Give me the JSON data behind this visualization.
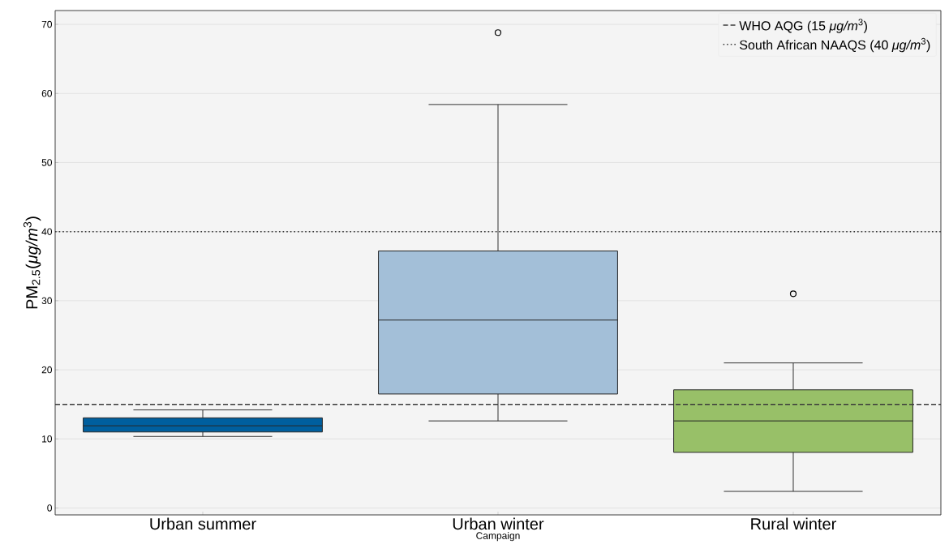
{
  "chart_data": {
    "type": "box",
    "xlabel": "Campaign",
    "ylabel": "PM$_{2.5}$(*μg/m*$^{3}$)",
    "categories": [
      "Urban summer",
      "Urban winter",
      "Rural winter"
    ],
    "colors": [
      "#005f9e",
      "#a3bfd8",
      "#98c068"
    ],
    "boxes": [
      {
        "low": 10.35,
        "q1": 11.0,
        "median": 11.9,
        "q3": 13.05,
        "high": 14.2
      },
      {
        "low": 12.6,
        "q1": 16.5,
        "median": 27.2,
        "q3": 37.2,
        "high": 58.4,
        "outliers": [
          68.8
        ]
      },
      {
        "low": 2.4,
        "q1": 8.05,
        "median": 12.6,
        "q3": 17.1,
        "high": 21.0,
        "outliers": [
          31.0
        ]
      }
    ],
    "ylim": [
      -1,
      72
    ],
    "yticks": [
      0,
      10,
      20,
      30,
      40,
      50,
      60,
      70
    ],
    "grid": "y",
    "legend": "top right",
    "ref_lines": [
      {
        "axis": "y",
        "value": 15,
        "label": "WHO AQG (15 *μg/m*$^{3}$)",
        "line_style": "dashed",
        "color": "#3a3a3a"
      },
      {
        "axis": "y",
        "value": 40,
        "label": "South African NAAQS (40 *μg/m*$^{3}$)",
        "line_style": "dotted",
        "color": "#3a3a3a"
      }
    ]
  }
}
